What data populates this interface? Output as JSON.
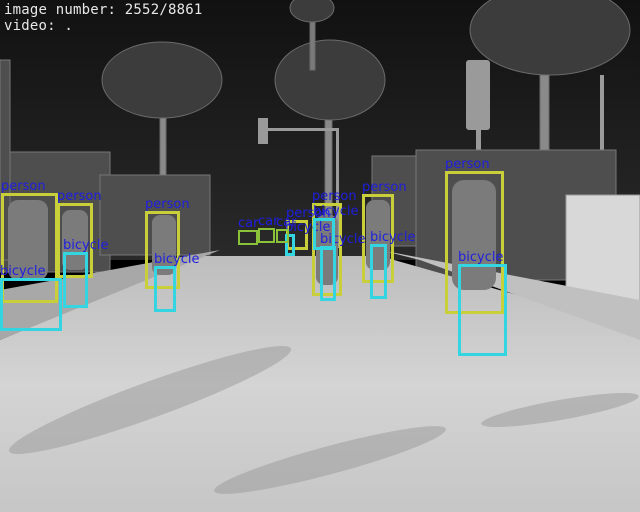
{
  "overlay": {
    "image_number_line": "image number: 2552/8861",
    "video_line": "video: ."
  },
  "colors": {
    "person_box": "#c8cf3a",
    "bicycle_box": "#33d6e0",
    "car_box": "#8ac23a",
    "label_text": "#1f1fe0"
  },
  "detections": [
    {
      "label": "person"
    },
    {
      "label": "person"
    },
    {
      "label": "person"
    },
    {
      "label": "person"
    },
    {
      "label": "person"
    },
    {
      "label": "person"
    },
    {
      "label": "person"
    },
    {
      "label": "bicycle"
    },
    {
      "label": "bicycle"
    },
    {
      "label": "bicycle"
    },
    {
      "label": "bicycle"
    },
    {
      "label": "bicycle"
    },
    {
      "label": "bicycle"
    },
    {
      "label": "bicycle"
    },
    {
      "label": "bicycle"
    },
    {
      "label": "car"
    },
    {
      "label": "car"
    },
    {
      "label": "car"
    }
  ]
}
